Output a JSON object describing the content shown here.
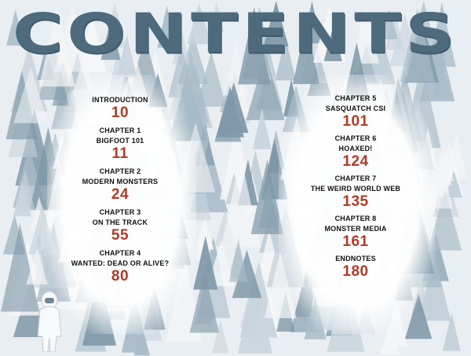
{
  "title": "CONTENTS",
  "colors": {
    "title": "#4d6b7d",
    "page_number": "#b23a24",
    "label": "#111111",
    "trees": [
      "#7f98a8",
      "#a9bcc8",
      "#c8d4dc",
      "#f4f6f8"
    ]
  },
  "left_column": [
    {
      "chapter": "",
      "title": "INTRODUCTION",
      "page": "10"
    },
    {
      "chapter": "CHAPTER 1",
      "title": "BIGFOOT 101",
      "page": "11"
    },
    {
      "chapter": "CHAPTER 2",
      "title": "MODERN MONSTERS",
      "page": "24"
    },
    {
      "chapter": "CHAPTER 3",
      "title": "ON THE TRACK",
      "page": "55"
    },
    {
      "chapter": "CHAPTER 4",
      "title": "WANTED: DEAD OR ALIVE?",
      "page": "80"
    }
  ],
  "right_column": [
    {
      "chapter": "CHAPTER 5",
      "title": "SASQUATCH CSI",
      "page": "101"
    },
    {
      "chapter": "CHAPTER 6",
      "title": "HOAXED!",
      "page": "124"
    },
    {
      "chapter": "CHAPTER 7",
      "title": "THE WEIRD WORLD WEB",
      "page": "135"
    },
    {
      "chapter": "CHAPTER 8",
      "title": "MONSTER MEDIA",
      "page": "161"
    },
    {
      "chapter": "",
      "title": "ENDNOTES",
      "page": "180"
    }
  ]
}
